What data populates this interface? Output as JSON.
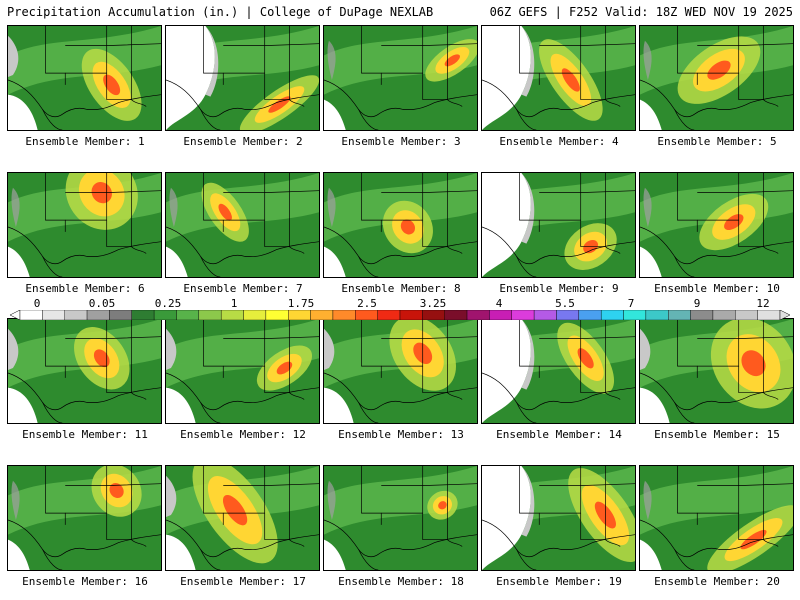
{
  "header": {
    "left": "Precipitation Accumulation (in.) | College of DuPage NEXLAB",
    "right": "06Z GEFS | F252 Valid: 18Z WED NOV 19 2025"
  },
  "colorbar": {
    "ticks": [
      "0",
      "0.05",
      "0.25",
      "1",
      "1.75",
      "2.5",
      "3.25",
      "4",
      "5.5",
      "7",
      "9",
      "12"
    ],
    "colors": [
      "#ffffff",
      "#e6e6e6",
      "#c8c8c8",
      "#a0a0a0",
      "#7d7d7d",
      "#2e7d32",
      "#3a9a3a",
      "#58b34a",
      "#8cc84b",
      "#b8dc45",
      "#e6ee3c",
      "#ffff33",
      "#ffd633",
      "#ffb030",
      "#ff8a2a",
      "#ff5a1e",
      "#f02a14",
      "#c8140a",
      "#961010",
      "#7a0e2a",
      "#a0146e",
      "#c81eb4",
      "#dc3cdc",
      "#b45ae6",
      "#7878f0",
      "#4aa0f0",
      "#2ed2f0",
      "#32e6dc",
      "#3cc8c8",
      "#64b4b4",
      "#8c8c8c",
      "#aaaaaa",
      "#c8c8c8",
      "#e0e0e0"
    ]
  },
  "members": [
    {
      "label": "Ensemble Member: 1",
      "pattern": "nw",
      "hot": [
        105,
        60,
        14,
        30
      ]
    },
    {
      "label": "Ensemble Member: 2",
      "pattern": "dry",
      "hot": [
        115,
        80,
        30,
        10
      ]
    },
    {
      "label": "Ensemble Member: 3",
      "pattern": "wet",
      "hot": [
        130,
        35,
        20,
        10
      ]
    },
    {
      "label": "Ensemble Member: 4",
      "pattern": "dryw",
      "hot": [
        90,
        55,
        12,
        35
      ]
    },
    {
      "label": "Ensemble Member: 5",
      "pattern": "wet",
      "hot": [
        80,
        45,
        30,
        18
      ]
    },
    {
      "label": "Ensemble Member: 6",
      "pattern": "wet",
      "hot": [
        95,
        20,
        22,
        28
      ]
    },
    {
      "label": "Ensemble Member: 7",
      "pattern": "wet",
      "hot": [
        60,
        40,
        10,
        25
      ]
    },
    {
      "label": "Ensemble Member: 8",
      "pattern": "wet",
      "hot": [
        85,
        55,
        15,
        20
      ]
    },
    {
      "label": "Ensemble Member: 9",
      "pattern": "dryw",
      "hot": [
        110,
        75,
        18,
        15
      ]
    },
    {
      "label": "Ensemble Member: 10",
      "pattern": "wet",
      "hot": [
        95,
        50,
        25,
        15
      ]
    },
    {
      "label": "Ensemble Member: 11",
      "pattern": "nw",
      "hot": [
        95,
        40,
        15,
        25
      ]
    },
    {
      "label": "Ensemble Member: 12",
      "pattern": "nw",
      "hot": [
        120,
        50,
        20,
        12
      ]
    },
    {
      "label": "Ensemble Member: 13",
      "pattern": "nw",
      "hot": [
        100,
        35,
        18,
        30
      ]
    },
    {
      "label": "Ensemble Member: 14",
      "pattern": "dryw",
      "hot": [
        105,
        40,
        12,
        30
      ]
    },
    {
      "label": "Ensemble Member: 15",
      "pattern": "nw",
      "hot": [
        115,
        45,
        25,
        35
      ]
    },
    {
      "label": "Ensemble Member: 16",
      "pattern": "wet",
      "hot": [
        110,
        25,
        15,
        20
      ]
    },
    {
      "label": "Ensemble Member: 17",
      "pattern": "nw",
      "hot": [
        70,
        45,
        18,
        45
      ]
    },
    {
      "label": "Ensemble Member: 18",
      "pattern": "wet",
      "hot": [
        120,
        40,
        10,
        10
      ]
    },
    {
      "label": "Ensemble Member: 19",
      "pattern": "dryw",
      "hot": [
        125,
        50,
        15,
        40
      ]
    },
    {
      "label": "Ensemble Member: 20",
      "pattern": "wet",
      "hot": [
        115,
        75,
        35,
        12
      ]
    }
  ]
}
